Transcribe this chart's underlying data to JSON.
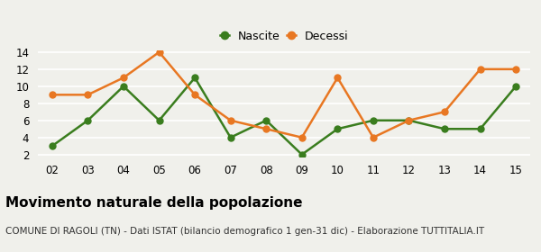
{
  "years": [
    "02",
    "03",
    "04",
    "05",
    "06",
    "07",
    "08",
    "09",
    "10",
    "11",
    "12",
    "13",
    "14",
    "15"
  ],
  "nascite": [
    3,
    6,
    10,
    6,
    11,
    4,
    6,
    2,
    5,
    6,
    6,
    5,
    5,
    10
  ],
  "decessi": [
    9,
    9,
    11,
    14,
    9,
    6,
    5,
    4,
    11,
    4,
    6,
    7,
    12,
    12
  ],
  "nascite_color": "#3a7d1e",
  "decessi_color": "#e87722",
  "title": "Movimento naturale della popolazione",
  "subtitle": "COMUNE DI RAGOLI (TN) - Dati ISTAT (bilancio demografico 1 gen-31 dic) - Elaborazione TUTTITALIA.IT",
  "legend_nascite": "Nascite",
  "legend_decessi": "Decessi",
  "ylim": [
    2,
    14
  ],
  "yticks": [
    2,
    4,
    6,
    8,
    10,
    12,
    14
  ],
  "bg_color": "#f0f0eb",
  "grid_color": "#ffffff",
  "title_fontsize": 11,
  "subtitle_fontsize": 7.5,
  "marker": "o",
  "linewidth": 1.8,
  "markersize": 5
}
